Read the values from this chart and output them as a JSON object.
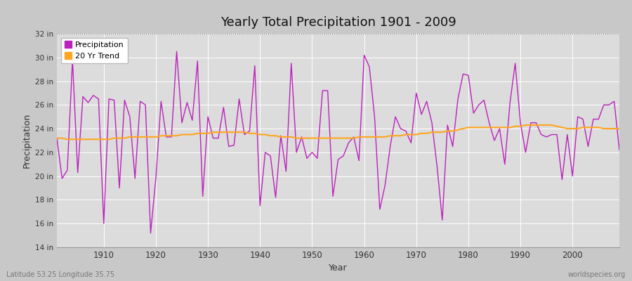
{
  "title": "Yearly Total Precipitation 1901 - 2009",
  "xlabel": "Year",
  "ylabel": "Precipitation",
  "bottom_left_label": "Latitude 53.25 Longitude 35.75",
  "bottom_right_label": "worldspecies.org",
  "ylim": [
    14,
    32
  ],
  "yticks": [
    14,
    16,
    18,
    20,
    22,
    24,
    26,
    28,
    30,
    32
  ],
  "ytick_labels": [
    "14 in",
    "16 in",
    "18 in",
    "20 in",
    "22 in",
    "24 in",
    "26 in",
    "28 in",
    "30 in",
    "32 in"
  ],
  "xlim": [
    1901,
    2009
  ],
  "xticks": [
    1910,
    1920,
    1930,
    1940,
    1950,
    1960,
    1970,
    1980,
    1990,
    2000
  ],
  "precip_color": "#BB22BB",
  "trend_color": "#FFA520",
  "fig_background": "#C8C8C8",
  "plot_background": "#DCDCDC",
  "dotted_line_y": 32,
  "years": [
    1901,
    1902,
    1903,
    1904,
    1905,
    1906,
    1907,
    1908,
    1909,
    1910,
    1911,
    1912,
    1913,
    1914,
    1915,
    1916,
    1917,
    1918,
    1919,
    1920,
    1921,
    1922,
    1923,
    1924,
    1925,
    1926,
    1927,
    1928,
    1929,
    1930,
    1931,
    1932,
    1933,
    1934,
    1935,
    1936,
    1937,
    1938,
    1939,
    1940,
    1941,
    1942,
    1943,
    1944,
    1945,
    1946,
    1947,
    1948,
    1949,
    1950,
    1951,
    1952,
    1953,
    1954,
    1955,
    1956,
    1957,
    1958,
    1959,
    1960,
    1961,
    1962,
    1963,
    1964,
    1965,
    1966,
    1967,
    1968,
    1969,
    1970,
    1971,
    1972,
    1973,
    1974,
    1975,
    1976,
    1977,
    1978,
    1979,
    1980,
    1981,
    1982,
    1983,
    1984,
    1985,
    1986,
    1987,
    1988,
    1989,
    1990,
    1991,
    1992,
    1993,
    1994,
    1995,
    1996,
    1997,
    1998,
    1999,
    2000,
    2001,
    2002,
    2003,
    2004,
    2005,
    2006,
    2007,
    2008,
    2009
  ],
  "precip": [
    23.2,
    19.8,
    20.5,
    29.8,
    20.3,
    26.7,
    26.2,
    26.8,
    26.5,
    16.0,
    26.5,
    26.4,
    19.0,
    26.4,
    25.0,
    19.8,
    26.3,
    26.0,
    15.2,
    19.8,
    26.3,
    23.3,
    23.3,
    30.5,
    24.5,
    26.2,
    24.7,
    29.7,
    18.3,
    25.0,
    23.2,
    23.2,
    25.8,
    22.5,
    22.6,
    26.5,
    23.5,
    23.8,
    29.3,
    17.5,
    22.0,
    21.7,
    18.2,
    23.4,
    20.4,
    29.5,
    22.0,
    23.3,
    21.5,
    22.0,
    21.5,
    27.2,
    27.2,
    18.3,
    21.4,
    21.7,
    22.8,
    23.3,
    21.3,
    30.2,
    29.2,
    25.0,
    17.2,
    19.2,
    22.5,
    25.0,
    24.0,
    23.8,
    22.8,
    27.0,
    25.2,
    26.3,
    24.5,
    20.8,
    16.3,
    24.3,
    22.5,
    26.5,
    28.6,
    28.5,
    25.3,
    26.0,
    26.4,
    24.5,
    23.0,
    24.0,
    21.0,
    26.2,
    29.5,
    24.5,
    22.0,
    24.5,
    24.5,
    23.5,
    23.3,
    23.5,
    23.5,
    19.7,
    23.5,
    20.0,
    25.0,
    24.8,
    22.5,
    24.8,
    24.8,
    26.0,
    26.0,
    26.3,
    22.2
  ],
  "trend": [
    23.2,
    23.2,
    23.1,
    23.1,
    23.1,
    23.1,
    23.1,
    23.1,
    23.1,
    23.1,
    23.1,
    23.2,
    23.2,
    23.2,
    23.3,
    23.3,
    23.3,
    23.3,
    23.3,
    23.3,
    23.4,
    23.4,
    23.4,
    23.4,
    23.5,
    23.5,
    23.5,
    23.6,
    23.6,
    23.6,
    23.7,
    23.7,
    23.7,
    23.7,
    23.7,
    23.7,
    23.7,
    23.6,
    23.6,
    23.5,
    23.5,
    23.4,
    23.4,
    23.3,
    23.3,
    23.3,
    23.2,
    23.2,
    23.2,
    23.2,
    23.2,
    23.2,
    23.2,
    23.2,
    23.2,
    23.2,
    23.2,
    23.2,
    23.3,
    23.3,
    23.3,
    23.3,
    23.3,
    23.3,
    23.4,
    23.4,
    23.4,
    23.5,
    23.5,
    23.5,
    23.6,
    23.6,
    23.7,
    23.7,
    23.7,
    23.8,
    23.8,
    23.9,
    24.0,
    24.1,
    24.1,
    24.1,
    24.1,
    24.1,
    24.1,
    24.1,
    24.1,
    24.1,
    24.2,
    24.2,
    24.3,
    24.3,
    24.3,
    24.3,
    24.3,
    24.3,
    24.2,
    24.1,
    24.0,
    24.0,
    24.0,
    24.1,
    24.1,
    24.1,
    24.1,
    24.0,
    24.0,
    24.0,
    24.0
  ]
}
